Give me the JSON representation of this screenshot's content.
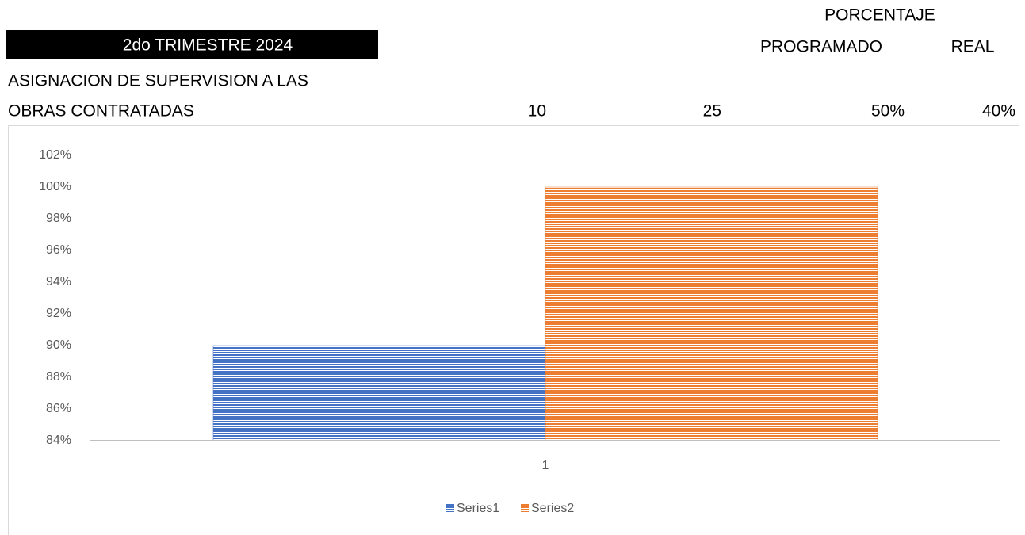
{
  "header": {
    "title": "2do TRIMESTRE 2024",
    "percent_label": "PORCENTAJE",
    "programmed_label": "PROGRAMADO",
    "real_label": "REAL",
    "row": {
      "name_line1": "ASIGNACION DE SUPERVISION A LAS",
      "name_line2": "OBRAS CONTRATADAS",
      "programmed": 10,
      "real": 25,
      "percent_programmed": "50%",
      "percent_real": "40%"
    }
  },
  "chart_data": {
    "type": "bar",
    "categories": [
      "1"
    ],
    "series": [
      {
        "name": "Series1",
        "color": "#4472c4",
        "values": [
          90
        ]
      },
      {
        "name": "Series2",
        "color": "#ed7d31",
        "values": [
          100
        ]
      }
    ],
    "ylim": [
      84,
      102
    ],
    "yticks": [
      {
        "value": 84,
        "label": "84%"
      },
      {
        "value": 86,
        "label": "86%"
      },
      {
        "value": 88,
        "label": "88%"
      },
      {
        "value": 90,
        "label": "90%"
      },
      {
        "value": 92,
        "label": "92%"
      },
      {
        "value": 94,
        "label": "94%"
      },
      {
        "value": 96,
        "label": "96%"
      },
      {
        "value": 98,
        "label": "98%"
      },
      {
        "value": 100,
        "label": "100%"
      },
      {
        "value": 102,
        "label": "102%"
      }
    ],
    "legend": "bottom"
  }
}
